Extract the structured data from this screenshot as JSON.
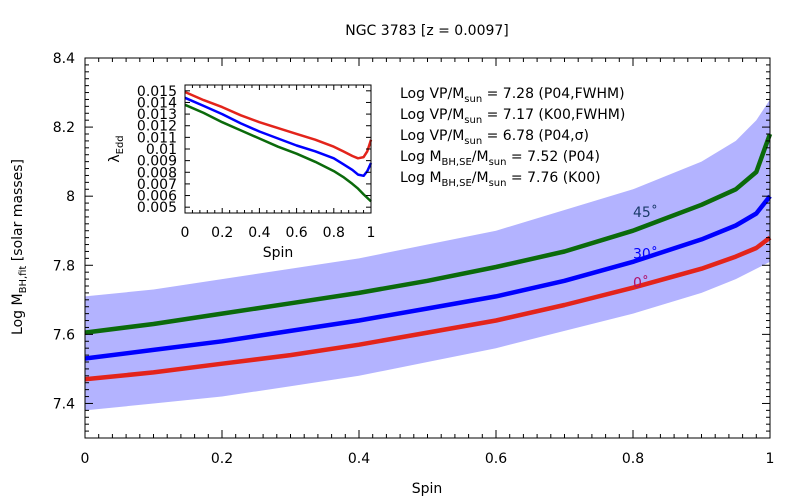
{
  "chart_data": [
    {
      "id": "main",
      "type": "line",
      "title": "NGC 3783  [z = 0.0097]",
      "xlabel": "Spin",
      "ylabel": {
        "main": "Log M",
        "sub": "BH,fit",
        "suffix": "  [solar masses]"
      },
      "xlim": [
        0,
        1
      ],
      "ylim": [
        7.3,
        8.4
      ],
      "xticks": [
        0,
        0.2,
        0.4,
        0.6,
        0.8,
        1
      ],
      "xtick_labels": [
        "0",
        "0.2",
        "0.4",
        "0.6",
        "0.8",
        "1"
      ],
      "yticks": [
        7.4,
        7.6,
        7.8,
        8,
        8.2,
        8.4
      ],
      "ytick_labels": [
        "7.4",
        "7.6",
        "7.8",
        "8",
        "8.2",
        "8.4"
      ],
      "band": {
        "color": "#b3b3ff",
        "x": [
          0,
          0.1,
          0.2,
          0.3,
          0.4,
          0.5,
          0.6,
          0.7,
          0.8,
          0.9,
          0.95,
          0.98,
          1.0
        ],
        "upper": [
          7.71,
          7.73,
          7.76,
          7.79,
          7.82,
          7.86,
          7.9,
          7.96,
          8.02,
          8.1,
          8.16,
          8.22,
          8.28
        ],
        "lower": [
          7.38,
          7.4,
          7.42,
          7.45,
          7.48,
          7.52,
          7.56,
          7.61,
          7.66,
          7.72,
          7.76,
          7.79,
          7.81
        ]
      },
      "series": [
        {
          "label": "0˚",
          "label_color": "#b0106a",
          "color": "#e3241b",
          "label_pos": [
            0.8,
            7.735
          ],
          "x": [
            0,
            0.1,
            0.2,
            0.3,
            0.4,
            0.5,
            0.6,
            0.7,
            0.8,
            0.9,
            0.95,
            0.98,
            1.0
          ],
          "y": [
            7.47,
            7.49,
            7.515,
            7.54,
            7.57,
            7.605,
            7.64,
            7.685,
            7.735,
            7.79,
            7.825,
            7.85,
            7.88
          ]
        },
        {
          "label": "30˚",
          "label_color": "#0000ff",
          "color": "#0000ff",
          "label_pos": [
            0.8,
            7.82
          ],
          "x": [
            0,
            0.1,
            0.2,
            0.3,
            0.4,
            0.5,
            0.6,
            0.7,
            0.8,
            0.9,
            0.95,
            0.98,
            1.0
          ],
          "y": [
            7.53,
            7.555,
            7.58,
            7.61,
            7.64,
            7.675,
            7.71,
            7.755,
            7.81,
            7.875,
            7.915,
            7.95,
            8.0
          ]
        },
        {
          "label": "45˚",
          "label_color": "#1a3a6a",
          "color": "#0b6a0b",
          "label_pos": [
            0.8,
            7.94
          ],
          "x": [
            0,
            0.1,
            0.2,
            0.3,
            0.4,
            0.5,
            0.6,
            0.7,
            0.8,
            0.9,
            0.95,
            0.98,
            1.0
          ],
          "y": [
            7.605,
            7.63,
            7.66,
            7.69,
            7.72,
            7.755,
            7.795,
            7.84,
            7.9,
            7.975,
            8.02,
            8.07,
            8.18
          ]
        }
      ]
    },
    {
      "id": "inset",
      "type": "line",
      "xlabel": "Spin",
      "ylabel": {
        "main": "λ",
        "sub": "Edd"
      },
      "xlim": [
        0,
        1
      ],
      "ylim": [
        0.0045,
        0.0155
      ],
      "xticks": [
        0,
        0.2,
        0.4,
        0.6,
        0.8,
        1
      ],
      "xtick_labels": [
        "0",
        "0.2",
        "0.4",
        "0.6",
        "0.8",
        "1"
      ],
      "yticks": [
        0.005,
        0.006,
        0.007,
        0.008,
        0.009,
        0.01,
        0.011,
        0.012,
        0.013,
        0.014,
        0.015
      ],
      "ytick_labels": [
        "0.005",
        "0.006",
        "0.007",
        "0.008",
        "0.009",
        "0.01",
        "0.011",
        "0.012",
        "0.013",
        "0.014",
        "0.015"
      ],
      "series": [
        {
          "color": "#e3241b",
          "x": [
            0,
            0.1,
            0.2,
            0.3,
            0.4,
            0.5,
            0.6,
            0.7,
            0.8,
            0.85,
            0.9,
            0.93,
            0.96,
            0.98,
            1.0
          ],
          "y": [
            0.0149,
            0.0142,
            0.0136,
            0.0129,
            0.0123,
            0.0118,
            0.0113,
            0.0108,
            0.0102,
            0.0098,
            0.0094,
            0.0092,
            0.0093,
            0.0098,
            0.0108
          ]
        },
        {
          "color": "#0000ff",
          "x": [
            0,
            0.1,
            0.2,
            0.3,
            0.4,
            0.5,
            0.6,
            0.7,
            0.8,
            0.85,
            0.9,
            0.93,
            0.96,
            0.98,
            1.0
          ],
          "y": [
            0.0144,
            0.0137,
            0.013,
            0.0122,
            0.0115,
            0.0109,
            0.0103,
            0.0098,
            0.0092,
            0.0087,
            0.0082,
            0.0078,
            0.0077,
            0.0081,
            0.0088
          ]
        },
        {
          "color": "#0b6a0b",
          "x": [
            0,
            0.1,
            0.2,
            0.3,
            0.4,
            0.5,
            0.6,
            0.7,
            0.8,
            0.85,
            0.9,
            0.93,
            0.96,
            0.98,
            1.0
          ],
          "y": [
            0.0138,
            0.0131,
            0.0123,
            0.0116,
            0.0109,
            0.0102,
            0.0096,
            0.0089,
            0.0081,
            0.0076,
            0.007,
            0.0066,
            0.0061,
            0.0058,
            0.0055
          ]
        }
      ]
    }
  ],
  "annotations": [
    {
      "pre": "Log VP/M",
      "sub": "sun",
      "post": " = 7.28 (P04,FWHM)"
    },
    {
      "pre": "Log VP/M",
      "sub": "sun",
      "post": " = 7.17 (K00,FWHM)"
    },
    {
      "pre": "Log VP/M",
      "sub": "sun",
      "post": " = 6.78 (P04,σ)"
    },
    {
      "pre": "Log M",
      "sub": "BH,SE",
      "post": "/M",
      "sub2": "sun",
      "post2": " = 7.52 (P04)"
    },
    {
      "pre": "Log M",
      "sub": "BH,SE",
      "post": "/M",
      "sub2": "sun",
      "post2": " = 7.76 (K00)"
    }
  ]
}
